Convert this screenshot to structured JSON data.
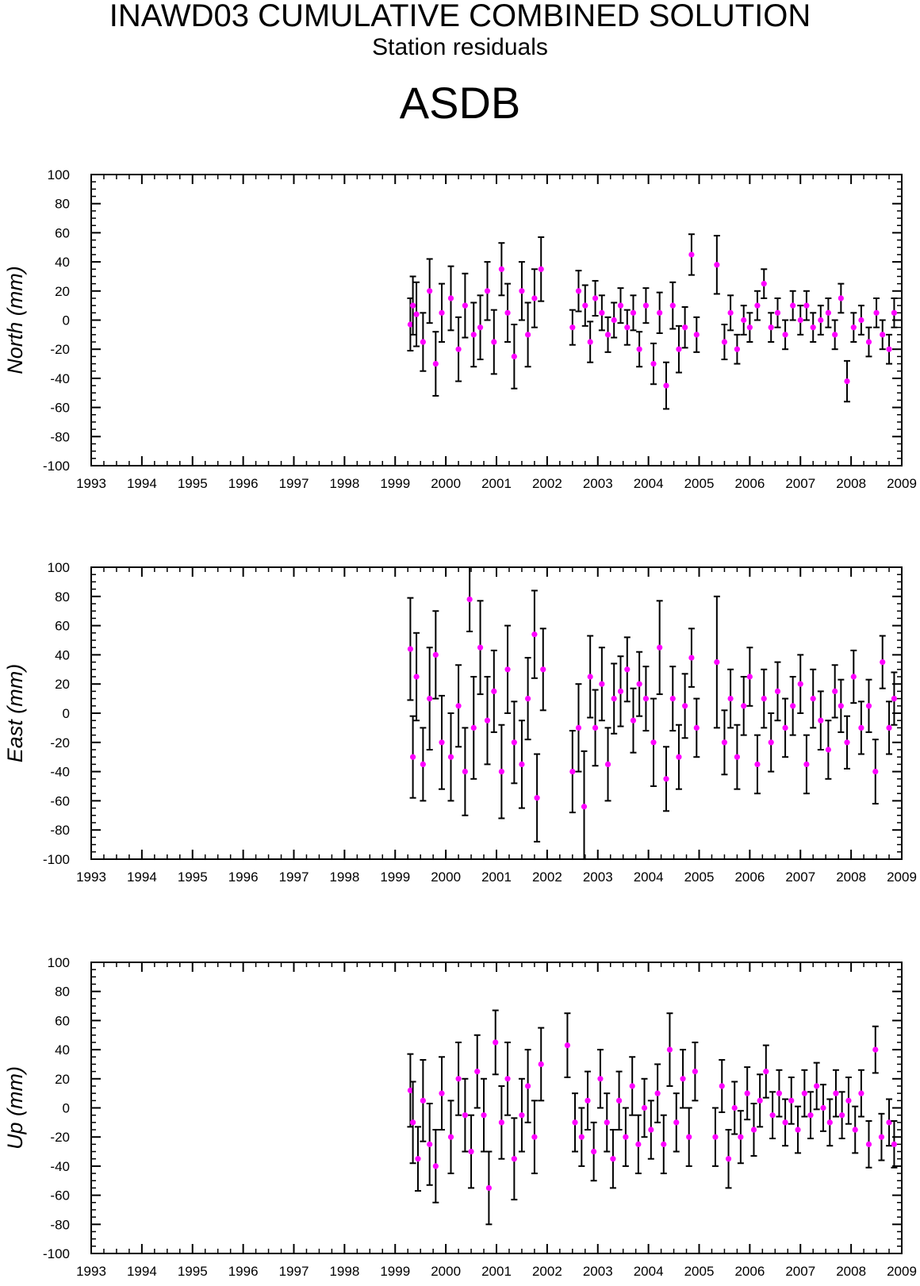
{
  "title": "INAWD03 CUMULATIVE COMBINED SOLUTION",
  "subtitle": "Station residuals",
  "station": "ASDB",
  "colors": {
    "point": "#ff00ff",
    "error_bar": "#000000",
    "axis": "#000000"
  },
  "chart_data": [
    {
      "type": "scatter",
      "ylabel": "North (mm)",
      "ylim": [
        -100,
        100
      ],
      "xlim": [
        1993,
        2009
      ],
      "x_ticks": [
        "1993",
        "1994",
        "1995",
        "1996",
        "1997",
        "1998",
        "1999",
        "2000",
        "2001",
        "2002",
        "2003",
        "2004",
        "2005",
        "2006",
        "2007",
        "2008",
        "2009"
      ],
      "y_ticks": [
        "-100",
        "-80",
        "-60",
        "-40",
        "-20",
        "0",
        "20",
        "40",
        "60",
        "80",
        "100"
      ],
      "series": [
        {
          "x": [
            1999.3,
            1999.35,
            1999.42,
            1999.55,
            1999.68,
            1999.8,
            1999.92,
            2000.1,
            2000.25,
            2000.38,
            2000.55,
            2000.68,
            2000.82,
            2000.95,
            2001.1,
            2001.22,
            2001.35,
            2001.5,
            2001.62,
            2001.75,
            2001.88,
            2002.5,
            2002.62,
            2002.75,
            2002.85,
            2002.95,
            2003.08,
            2003.2,
            2003.32,
            2003.45,
            2003.58,
            2003.7,
            2003.82,
            2003.95,
            2004.1,
            2004.22,
            2004.35,
            2004.48,
            2004.6,
            2004.72,
            2004.85,
            2004.95,
            2005.35,
            2005.5,
            2005.62,
            2005.75,
            2005.88,
            2006.0,
            2006.15,
            2006.28,
            2006.42,
            2006.55,
            2006.7,
            2006.85,
            2007.0,
            2007.12,
            2007.25,
            2007.4,
            2007.55,
            2007.68,
            2007.8,
            2007.92,
            2008.05,
            2008.2,
            2008.35,
            2008.5,
            2008.62,
            2008.75,
            2008.85
          ],
          "y": [
            -3,
            10,
            4,
            -15,
            20,
            -30,
            5,
            15,
            -20,
            10,
            -10,
            -5,
            20,
            -15,
            35,
            5,
            -25,
            20,
            -10,
            15,
            35,
            -5,
            20,
            10,
            -15,
            15,
            5,
            -10,
            0,
            10,
            -5,
            5,
            -20,
            10,
            -30,
            5,
            -45,
            10,
            -20,
            -5,
            45,
            -10,
            38,
            -15,
            5,
            -20,
            0,
            -5,
            10,
            25,
            -5,
            5,
            -10,
            10,
            0,
            10,
            -5,
            0,
            5,
            -10,
            15,
            -42,
            -5,
            0,
            -15,
            5,
            -10,
            -20,
            5
          ],
          "err": [
            18,
            20,
            22,
            20,
            22,
            22,
            20,
            22,
            22,
            22,
            22,
            22,
            20,
            22,
            18,
            20,
            22,
            20,
            22,
            20,
            22,
            12,
            14,
            14,
            14,
            12,
            12,
            12,
            12,
            12,
            12,
            12,
            12,
            12,
            14,
            14,
            16,
            16,
            16,
            14,
            14,
            12,
            20,
            12,
            12,
            10,
            10,
            10,
            10,
            10,
            10,
            10,
            10,
            10,
            10,
            10,
            10,
            10,
            10,
            10,
            10,
            14,
            10,
            10,
            10,
            10,
            10,
            10,
            10
          ]
        }
      ]
    },
    {
      "type": "scatter",
      "ylabel": "East (mm)",
      "ylim": [
        -100,
        100
      ],
      "xlim": [
        1993,
        2009
      ],
      "x_ticks": [
        "1993",
        "1994",
        "1995",
        "1996",
        "1997",
        "1998",
        "1999",
        "2000",
        "2001",
        "2002",
        "2003",
        "2004",
        "2005",
        "2006",
        "2007",
        "2008",
        "2009"
      ],
      "y_ticks": [
        "-100",
        "-80",
        "-60",
        "-40",
        "-20",
        "0",
        "20",
        "40",
        "60",
        "80",
        "100"
      ],
      "series": [
        {
          "x": [
            1999.3,
            1999.35,
            1999.42,
            1999.55,
            1999.68,
            1999.8,
            1999.92,
            2000.1,
            2000.25,
            2000.38,
            2000.47,
            2000.55,
            2000.68,
            2000.82,
            2000.95,
            2001.1,
            2001.22,
            2001.35,
            2001.5,
            2001.62,
            2001.75,
            2001.8,
            2001.92,
            2002.5,
            2002.62,
            2002.73,
            2002.85,
            2002.95,
            2003.08,
            2003.2,
            2003.32,
            2003.45,
            2003.58,
            2003.7,
            2003.82,
            2003.95,
            2004.1,
            2004.22,
            2004.35,
            2004.48,
            2004.6,
            2004.72,
            2004.85,
            2004.95,
            2005.35,
            2005.5,
            2005.62,
            2005.75,
            2005.88,
            2006.0,
            2006.15,
            2006.28,
            2006.42,
            2006.55,
            2006.7,
            2006.85,
            2007.0,
            2007.12,
            2007.25,
            2007.4,
            2007.55,
            2007.68,
            2007.8,
            2007.92,
            2008.05,
            2008.2,
            2008.35,
            2008.48,
            2008.62,
            2008.75,
            2008.85
          ],
          "y": [
            44,
            -30,
            25,
            -35,
            10,
            40,
            -20,
            -30,
            5,
            -40,
            78,
            -10,
            45,
            -5,
            15,
            -40,
            30,
            -20,
            -35,
            10,
            54,
            -58,
            30,
            -40,
            -10,
            -64,
            25,
            -10,
            20,
            -35,
            10,
            15,
            30,
            -5,
            20,
            10,
            -20,
            45,
            -45,
            10,
            -30,
            5,
            38,
            -10,
            35,
            -20,
            10,
            -30,
            5,
            25,
            -35,
            10,
            -20,
            15,
            -10,
            5,
            20,
            -35,
            10,
            -5,
            -25,
            15,
            5,
            -20,
            25,
            -10,
            5,
            -40,
            35,
            -10,
            10
          ],
          "err": [
            35,
            28,
            30,
            25,
            35,
            30,
            32,
            30,
            28,
            30,
            22,
            35,
            32,
            30,
            28,
            32,
            30,
            28,
            30,
            28,
            30,
            30,
            28,
            28,
            30,
            38,
            28,
            26,
            25,
            25,
            24,
            24,
            22,
            22,
            22,
            22,
            30,
            32,
            22,
            22,
            22,
            22,
            20,
            20,
            45,
            22,
            20,
            22,
            20,
            20,
            20,
            20,
            20,
            20,
            20,
            20,
            20,
            20,
            20,
            20,
            20,
            18,
            18,
            18,
            18,
            18,
            18,
            22,
            18,
            18,
            18
          ]
        }
      ]
    },
    {
      "type": "scatter",
      "ylabel": "Up (mm)",
      "ylim": [
        -100,
        100
      ],
      "xlim": [
        1993,
        2009
      ],
      "x_ticks": [
        "1993",
        "1994",
        "1995",
        "1996",
        "1997",
        "1998",
        "1999",
        "2000",
        "2001",
        "2002",
        "2003",
        "2004",
        "2005",
        "2006",
        "2007",
        "2008",
        "2009"
      ],
      "y_ticks": [
        "-100",
        "-80",
        "-60",
        "-40",
        "-20",
        "0",
        "20",
        "40",
        "60",
        "80",
        "100"
      ],
      "series": [
        {
          "x": [
            1999.3,
            1999.35,
            1999.45,
            1999.55,
            1999.68,
            1999.8,
            1999.92,
            2000.1,
            2000.25,
            2000.38,
            2000.5,
            2000.62,
            2000.75,
            2000.85,
            2000.98,
            2001.1,
            2001.22,
            2001.35,
            2001.5,
            2001.62,
            2001.75,
            2001.88,
            2002.4,
            2002.55,
            2002.68,
            2002.8,
            2002.92,
            2003.05,
            2003.18,
            2003.3,
            2003.42,
            2003.55,
            2003.68,
            2003.8,
            2003.92,
            2004.05,
            2004.18,
            2004.3,
            2004.42,
            2004.55,
            2004.68,
            2004.8,
            2004.92,
            2005.32,
            2005.45,
            2005.58,
            2005.7,
            2005.82,
            2005.95,
            2006.08,
            2006.2,
            2006.32,
            2006.45,
            2006.58,
            2006.7,
            2006.82,
            2006.95,
            2007.08,
            2007.2,
            2007.32,
            2007.45,
            2007.58,
            2007.7,
            2007.82,
            2007.95,
            2008.08,
            2008.2,
            2008.35,
            2008.48,
            2008.6,
            2008.75,
            2008.85
          ],
          "y": [
            12,
            -10,
            -35,
            5,
            -25,
            -40,
            10,
            -20,
            20,
            -5,
            -30,
            25,
            -5,
            -55,
            45,
            -10,
            20,
            -35,
            -5,
            15,
            -20,
            30,
            43,
            -10,
            -20,
            5,
            -30,
            20,
            -10,
            -35,
            5,
            -20,
            15,
            -25,
            0,
            -15,
            10,
            -25,
            40,
            -10,
            20,
            -20,
            25,
            -20,
            15,
            -35,
            0,
            -20,
            10,
            -15,
            5,
            25,
            -5,
            10,
            -10,
            5,
            -15,
            10,
            -5,
            15,
            0,
            -10,
            10,
            -5,
            5,
            -15,
            10,
            -25,
            40,
            -20,
            -10,
            -25
          ],
          "err": [
            25,
            28,
            22,
            28,
            28,
            25,
            25,
            25,
            25,
            25,
            25,
            25,
            25,
            25,
            22,
            25,
            25,
            28,
            25,
            25,
            25,
            25,
            22,
            20,
            20,
            20,
            20,
            20,
            20,
            20,
            20,
            20,
            20,
            20,
            20,
            20,
            20,
            20,
            25,
            20,
            20,
            20,
            20,
            20,
            18,
            20,
            18,
            18,
            18,
            18,
            18,
            18,
            16,
            16,
            16,
            16,
            16,
            16,
            16,
            16,
            16,
            16,
            16,
            16,
            16,
            16,
            16,
            16,
            16,
            16,
            16,
            16
          ]
        }
      ]
    }
  ]
}
